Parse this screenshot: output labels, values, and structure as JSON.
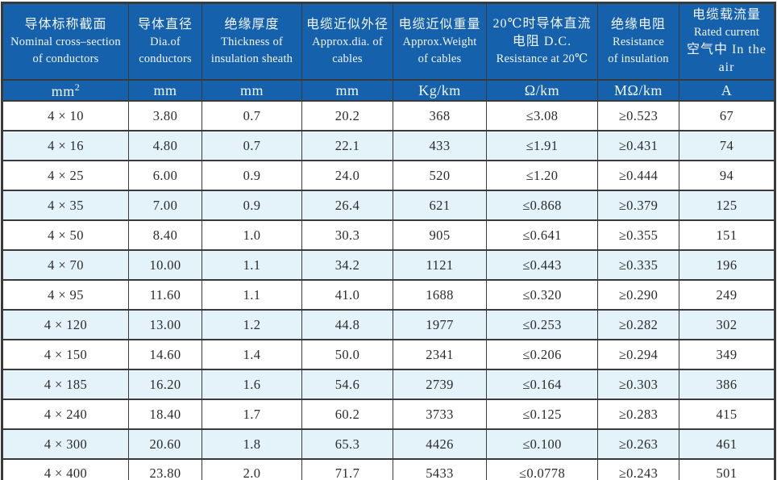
{
  "table": {
    "title_semantic": "cable-specification-table",
    "columns": [
      {
        "lines": [
          "导体标称截面",
          "Nominal cross–section",
          "of conductors"
        ],
        "unit": "mm²"
      },
      {
        "lines": [
          "导体直径",
          "Dia.of",
          "conductors"
        ],
        "unit": "mm"
      },
      {
        "lines": [
          "绝缘厚度",
          "Thickness of",
          "insulation sheath"
        ],
        "unit": "mm"
      },
      {
        "lines": [
          "电缆近似外径",
          "Approx.dia. of",
          "cables"
        ],
        "unit": "mm"
      },
      {
        "lines": [
          "电缆近似重量",
          "Approx.Weight",
          "of cables"
        ],
        "unit": "Kg/km"
      },
      {
        "lines": [
          "20℃时导体直流",
          "电阻 D.C.",
          "Resistance at 20℃"
        ],
        "unit": "Ω/km"
      },
      {
        "lines": [
          "绝缘电阻",
          "Resistance",
          "of insulation"
        ],
        "unit": "MΩ/km"
      },
      {
        "lines": [
          "电缆载流量",
          "Rated current",
          "空气中 In the air"
        ],
        "unit": "A"
      }
    ],
    "rows": [
      [
        "4 × 10",
        "3.80",
        "0.7",
        "20.2",
        "368",
        "≤3.08",
        "≥0.523",
        "67"
      ],
      [
        "4 × 16",
        "4.80",
        "0.7",
        "22.1",
        "433",
        "≤1.91",
        "≥0.431",
        "74"
      ],
      [
        "4 × 25",
        "6.00",
        "0.9",
        "24.0",
        "520",
        "≤1.20",
        "≥0.444",
        "94"
      ],
      [
        "4 × 35",
        "7.00",
        "0.9",
        "26.4",
        "621",
        "≤0.868",
        "≥0.379",
        "125"
      ],
      [
        "4 × 50",
        "8.40",
        "1.0",
        "30.3",
        "905",
        "≤0.641",
        "≥0.355",
        "151"
      ],
      [
        "4 × 70",
        "10.00",
        "1.1",
        "34.2",
        "1121",
        "≤0.443",
        "≥0.335",
        "196"
      ],
      [
        "4 × 95",
        "11.60",
        "1.1",
        "41.0",
        "1688",
        "≤0.320",
        "≥0.290",
        "249"
      ],
      [
        "4 × 120",
        "13.00",
        "1.2",
        "44.8",
        "1977",
        "≤0.253",
        "≥0.282",
        "302"
      ],
      [
        "4 × 150",
        "14.60",
        "1.4",
        "50.0",
        "2341",
        "≤0.206",
        "≥0.294",
        "349"
      ],
      [
        "4 × 185",
        "16.20",
        "1.6",
        "54.6",
        "2739",
        "≤0.164",
        "≥0.303",
        "386"
      ],
      [
        "4 × 240",
        "18.40",
        "1.7",
        "60.2",
        "3733",
        "≤0.125",
        "≥0.283",
        "415"
      ],
      [
        "4 × 300",
        "20.60",
        "1.8",
        "65.3",
        "4426",
        "≤0.100",
        "≥0.263",
        "461"
      ],
      [
        "4 × 400",
        "23.80",
        "2.0",
        "71.7",
        "5433",
        "≤0.0778",
        "≥0.243",
        "501"
      ]
    ]
  },
  "colors": {
    "header_blue": "#1561ab",
    "row_alt_blue": "#e4f2fa",
    "grid_line": "#3a3a3a",
    "data_text": "#2b2b2b",
    "header_text": "#f2f6fb"
  }
}
